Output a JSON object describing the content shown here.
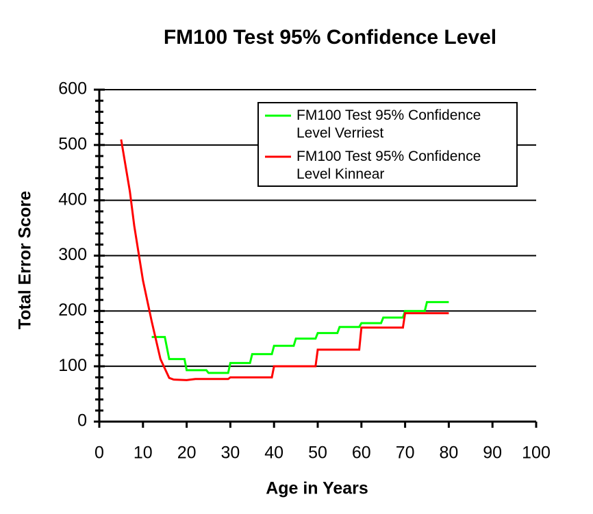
{
  "chart_data": {
    "type": "line",
    "title": "FM100 Test 95% Confidence Level",
    "x_label": "Age in Years",
    "y_label": "Total Error Score",
    "xlim": [
      0,
      100
    ],
    "xticks": [
      0,
      10,
      20,
      30,
      40,
      50,
      60,
      70,
      80,
      90,
      100
    ],
    "ylim": [
      0,
      600
    ],
    "yticks": [
      0,
      100,
      200,
      300,
      400,
      500,
      600
    ],
    "grid": true,
    "legend": "upper right",
    "series": [
      {
        "name": "FM100 Test 95% Confidence Level Verriest",
        "color": "#00ff00",
        "x": [
          12,
          15,
          16,
          19.5,
          20,
          24.5,
          25,
          29.5,
          30,
          34.5,
          35,
          39.5,
          40,
          44.5,
          45,
          49.5,
          50,
          54.5,
          55,
          59.5,
          60,
          64.5,
          65,
          69.5,
          70,
          74.5,
          75,
          80
        ],
        "values": [
          153,
          153,
          113,
          113,
          93,
          93,
          88,
          88,
          106,
          106,
          122,
          122,
          137,
          137,
          150,
          150,
          160,
          160,
          171,
          171,
          178,
          178,
          188,
          188,
          200,
          200,
          216,
          216
        ]
      },
      {
        "name": "FM100 Test 95% Confidence Level Kinnear",
        "color": "#ff0000",
        "x": [
          5,
          7,
          8,
          10,
          12,
          14,
          16,
          17,
          20,
          22,
          29.5,
          30,
          39.5,
          40,
          49.5,
          50,
          59.5,
          60,
          69.5,
          70,
          80
        ],
        "values": [
          510,
          416,
          354,
          255,
          181,
          113,
          79,
          76,
          75,
          77,
          77,
          80,
          80,
          100,
          100,
          130,
          130,
          170,
          170,
          196,
          196
        ]
      }
    ]
  }
}
